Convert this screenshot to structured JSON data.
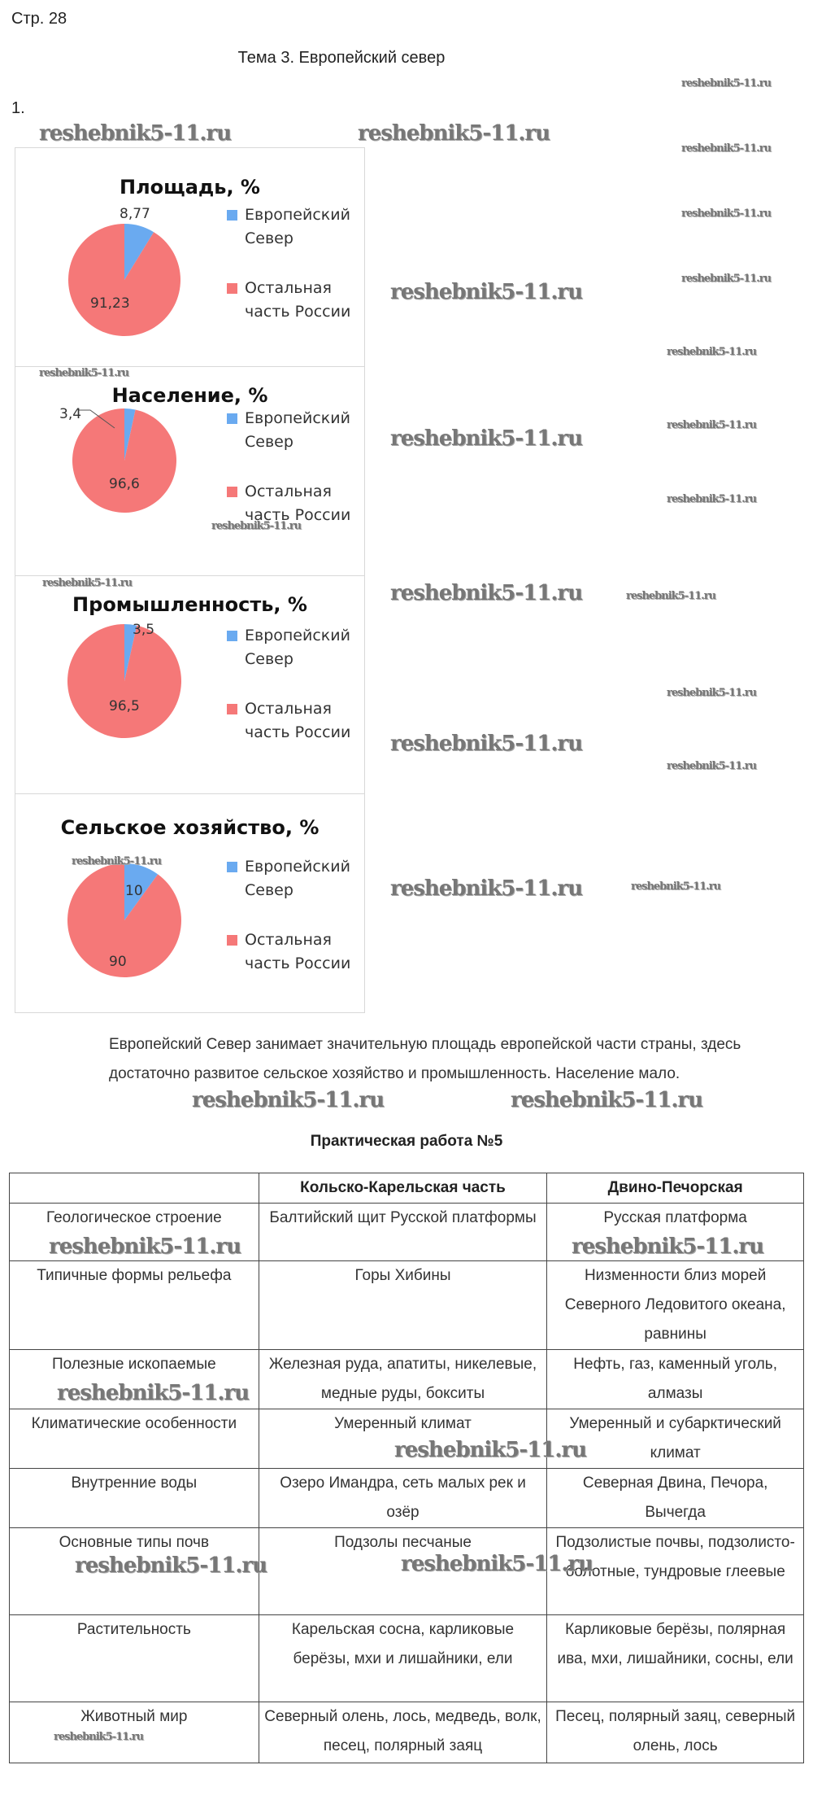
{
  "page_number": "Стр. 28",
  "topic_title": "Тема 3. Европейский север",
  "task_number": "1.",
  "watermark": "reshebnik5-11.ru",
  "colors": {
    "european_north": "#6aaaf0",
    "rest_of_russia": "#f57878"
  },
  "chart_data": [
    {
      "type": "pie",
      "title": "Площадь, %",
      "categories": [
        "Европейский Север",
        "Остальная часть России"
      ],
      "values": [
        8.77,
        91.23
      ],
      "labels": [
        "8,77",
        "91,23"
      ],
      "legend": "right"
    },
    {
      "type": "pie",
      "title": "Население, %",
      "categories": [
        "Европейский Север",
        "Остальная часть России"
      ],
      "values": [
        3.4,
        96.6
      ],
      "labels": [
        "3,4",
        "96,6"
      ],
      "legend": "right"
    },
    {
      "type": "pie",
      "title": "Промышленность, %",
      "categories": [
        "Европейский Север",
        "Остальная часть России"
      ],
      "values": [
        3.5,
        96.5
      ],
      "labels": [
        "3,5",
        "96,5"
      ],
      "legend": "right"
    },
    {
      "type": "pie",
      "title": "Сельское хозяйство, %",
      "categories": [
        "Европейский Север",
        "Остальная часть России"
      ],
      "values": [
        10,
        90
      ],
      "labels": [
        "10",
        "90"
      ],
      "legend": "right"
    }
  ],
  "legend": {
    "item1_line1": "Европейский",
    "item1_line2": "Север",
    "item2_line1": "Остальная",
    "item2_line2": "часть России"
  },
  "conclusion": "Европейский Север занимает значительную площадь европейской части страны, здесь достаточно развитое сельское хозяйство и промышленность. Население мало.",
  "practical_title": "Практическая работа №5",
  "table": {
    "headers": [
      "",
      "Кольско-Карельская часть",
      "Двино-Печорская"
    ],
    "rows": [
      [
        "Геологическое строение",
        "Балтийский щит Русской платформы",
        "Русская платформа"
      ],
      [
        "Типичные формы рельефа",
        "Горы Хибины",
        "Низменности близ морей Северного Ледовитого океана, равнины"
      ],
      [
        "Полезные ископаемые",
        "Железная руда, апатиты, никелевые, медные руды, бокситы",
        "Нефть, газ, каменный уголь, алмазы"
      ],
      [
        "Климатические особенности",
        "Умеренный климат",
        "Умеренный и субарктический климат"
      ],
      [
        "Внутренние воды",
        "Озеро Имандра, сеть малых рек и озёр",
        "Северная Двина, Печора, Вычегда"
      ],
      [
        "Основные типы почв",
        "Подзолы песчаные",
        "Подзолистые почвы, подзолисто-болотные, тундровые глеевые"
      ],
      [
        "Растительность",
        "Карельская сосна, карликовые берёзы, мхи и лишайники, ели",
        "Карликовые берёзы, полярная ива, мхи, лишайники, сосны, ели"
      ],
      [
        "Животный мир",
        "Северный олень, лось, медведь, волк, песец, полярный заяц",
        "Песец, полярный заяц, северный олень, лось"
      ]
    ]
  }
}
